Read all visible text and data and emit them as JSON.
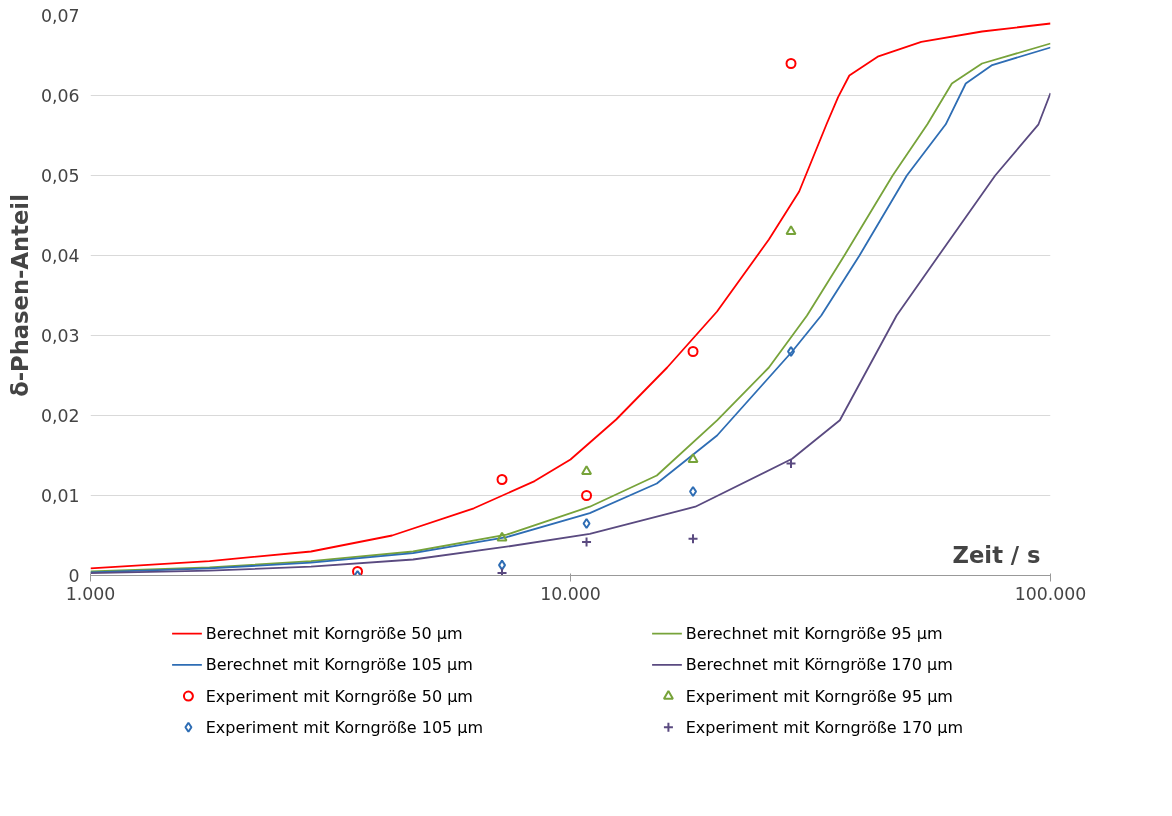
{
  "chart_data": {
    "type": "line",
    "xlabel": "Zeit / s",
    "ylabel": "δ-Phasen-Anteil",
    "log": "x",
    "grid": "y",
    "legend": "bottom",
    "xlim": [
      1000,
      100000
    ],
    "xticks": [
      {
        "value": 1000,
        "label": "1.000"
      },
      {
        "value": 10000,
        "label": "10.000"
      },
      {
        "value": 100000,
        "label": "100.000"
      }
    ],
    "ylim": [
      0,
      0.07
    ],
    "yticks": [
      {
        "value": 0,
        "label": "0"
      },
      {
        "value": 0.01,
        "label": "0,01"
      },
      {
        "value": 0.02,
        "label": "0,02"
      },
      {
        "value": 0.03,
        "label": "0,03"
      },
      {
        "value": 0.04,
        "label": "0,04"
      },
      {
        "value": 0.05,
        "label": "0,05"
      },
      {
        "value": 0.06,
        "label": "0,06"
      },
      {
        "value": 0.07,
        "label": "0,07"
      }
    ],
    "series": [
      {
        "name": "Berechnet mit Korngröße 50 µm",
        "color": "#ff0000",
        "marker": "none",
        "x": [
          1000,
          1770,
          2880,
          4250,
          6290,
          8420,
          10000,
          12450,
          15900,
          20200,
          25900,
          29950,
          34200,
          36100,
          38100,
          43800,
          53800,
          72000,
          100000
        ],
        "values": [
          0.0009,
          0.0018,
          0.003,
          0.005,
          0.0084,
          0.0118,
          0.0145,
          0.0195,
          0.026,
          0.033,
          0.042,
          0.048,
          0.0565,
          0.0598,
          0.0625,
          0.0649,
          0.0667,
          0.068,
          0.069
        ]
      },
      {
        "name": "Berechnet mit Korngröße 95 µm",
        "color": "#77a33a",
        "marker": "none",
        "x": [
          1000,
          1770,
          2880,
          4700,
          7360,
          10970,
          15130,
          20200,
          25900,
          31100,
          37200,
          46900,
          55400,
          62300,
          72000,
          100000
        ],
        "values": [
          0.0005,
          0.001,
          0.0018,
          0.003,
          0.0051,
          0.0086,
          0.0125,
          0.0194,
          0.026,
          0.0325,
          0.04,
          0.05,
          0.0564,
          0.0615,
          0.064,
          0.0665
        ]
      },
      {
        "name": "Berechnet mit Korngröße 105 µm",
        "color": "#2e6db4",
        "marker": "none",
        "x": [
          1000,
          1770,
          2880,
          4700,
          7360,
          10970,
          15130,
          20200,
          28960,
          33300,
          40000,
          50200,
          60500,
          66600,
          75600,
          100000
        ],
        "values": [
          0.0004,
          0.0009,
          0.0016,
          0.0028,
          0.0048,
          0.0078,
          0.0115,
          0.0175,
          0.028,
          0.0325,
          0.04,
          0.05,
          0.0564,
          0.0615,
          0.0638,
          0.066
        ]
      },
      {
        "name": "Berechnet mit Körngröße 170 µm",
        "color": "#5a4a80",
        "marker": "none",
        "x": [
          1000,
          1770,
          2880,
          4700,
          7360,
          10970,
          18200,
          28960,
          36400,
          47800,
          58500,
          76700,
          94400,
          100000
        ],
        "values": [
          0.0003,
          0.0006,
          0.0011,
          0.002,
          0.0036,
          0.0052,
          0.0086,
          0.0146,
          0.0194,
          0.0325,
          0.04,
          0.05,
          0.0564,
          0.0603
        ]
      },
      {
        "name": "Experiment mit Korngröße 50 µm",
        "type": "scatter",
        "color": "#ff0000",
        "marker": "circle",
        "x": [
          3600,
          7200,
          10800,
          18000,
          28800
        ],
        "values": [
          0.0005,
          0.012,
          0.01,
          0.028,
          0.064
        ]
      },
      {
        "name": "Experiment mit Korngröße 95 µm",
        "type": "scatter",
        "color": "#77a33a",
        "marker": "triangle",
        "x": [
          7200,
          10800,
          18000,
          28800
        ],
        "values": [
          0.0047,
          0.013,
          0.0145,
          0.043
        ]
      },
      {
        "name": "Experiment mit Korngröße 105 µm",
        "type": "scatter",
        "color": "#2e6db4",
        "marker": "diamond",
        "x": [
          3600,
          7200,
          10800,
          18000,
          28800
        ],
        "values": [
          0,
          0.0013,
          0.0065,
          0.0105,
          0.028
        ]
      },
      {
        "name": "Experiment mit Korngröße 170 µm",
        "type": "scatter",
        "color": "#5a4a80",
        "marker": "cross",
        "x": [
          7200,
          10800,
          18000,
          28800
        ],
        "values": [
          0.0003,
          0.0042,
          0.0046,
          0.014
        ]
      }
    ]
  }
}
